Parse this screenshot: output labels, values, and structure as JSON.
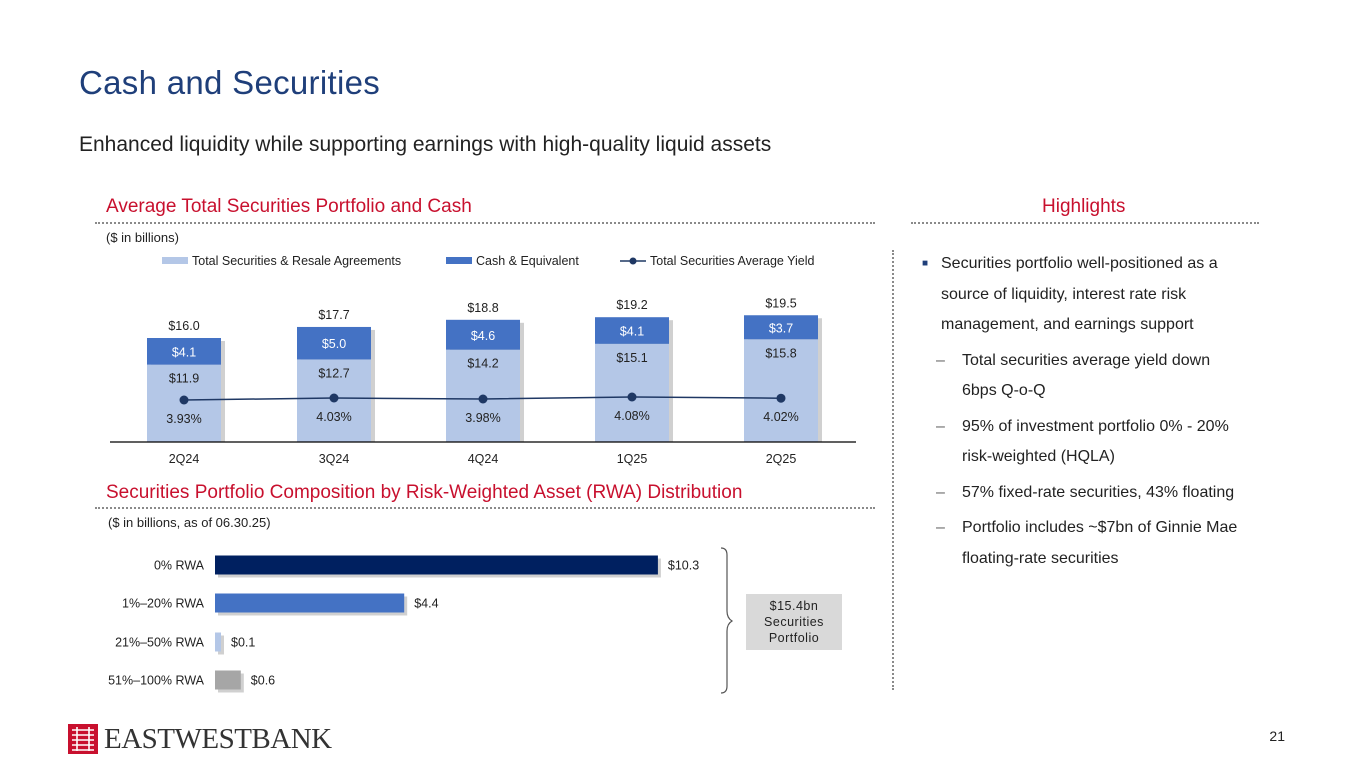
{
  "page": {
    "title": "Cash and Securities",
    "subtitle": "Enhanced liquidity while supporting earnings with high-quality liquid assets",
    "page_number": "21"
  },
  "left_top": {
    "section_title": "Average Total Securities Portfolio and Cash",
    "units_note": "($ in billions)"
  },
  "left_bottom": {
    "section_title": "Securities Portfolio Composition by Risk-Weighted Asset (RWA) Distribution",
    "units_note": "($ in billions, as of 06.30.25)",
    "callout": [
      "$15.4bn",
      "Securities",
      "Portfolio"
    ]
  },
  "highlights": {
    "title": "Highlights",
    "main_bullet": [
      "Securities portfolio well-positioned as a",
      "source of liquidity, interest rate risk",
      "management, and earnings support"
    ],
    "sub_bullets": [
      [
        "Total securities average yield down",
        "6bps Q-o-Q"
      ],
      [
        "95% of investment portfolio 0% - 20%",
        "risk-weighted (HQLA)"
      ],
      [
        "57% fixed-rate securities, 43% floating"
      ],
      [
        "Portfolio includes ~$7bn of Ginnie Mae",
        "floating-rate securities"
      ]
    ]
  },
  "brand": {
    "name": "EASTWESTBANK",
    "logo_color": "#c8102e"
  },
  "colors": {
    "light_blue": "#b4c7e7",
    "mid_blue": "#4472c4",
    "navy": "#002060",
    "line": "#1f3864",
    "gray": "#a6a6a6"
  },
  "chart_data": [
    {
      "type": "bar",
      "stacked": true,
      "categories": [
        "2Q24",
        "3Q24",
        "4Q24",
        "1Q25",
        "2Q25"
      ],
      "series": [
        {
          "name": "Total Securities & Resale Agreements",
          "values": [
            11.9,
            12.7,
            14.2,
            15.1,
            15.8
          ],
          "labels": [
            "$11.9",
            "$12.7",
            "$14.2",
            "$15.1",
            "$15.8"
          ]
        },
        {
          "name": "Cash & Equivalent",
          "values": [
            4.1,
            5.0,
            4.6,
            4.1,
            3.7
          ],
          "labels": [
            "$4.1",
            "$5.0",
            "$4.6",
            "$4.1",
            "$3.7"
          ]
        }
      ],
      "totals": [
        16.0,
        17.7,
        18.8,
        19.2,
        19.5
      ],
      "total_labels": [
        "$16.0",
        "$17.7",
        "$18.8",
        "$19.2",
        "$19.5"
      ],
      "line_series": {
        "name": "Total Securities Average Yield",
        "values": [
          3.93,
          4.03,
          3.98,
          4.08,
          4.02
        ],
        "labels": [
          "3.93%",
          "4.03%",
          "3.98%",
          "4.08%",
          "4.02%"
        ]
      },
      "legend": "top"
    },
    {
      "type": "bar",
      "orientation": "horizontal",
      "categories": [
        "0% RWA",
        "1%–20% RWA",
        "21%–50% RWA",
        "51%–100% RWA"
      ],
      "values": [
        10.3,
        4.4,
        0.1,
        0.6
      ],
      "labels": [
        "$10.3",
        "$4.4",
        "$0.1",
        "$0.6"
      ],
      "colors": [
        "#002060",
        "#4472c4",
        "#b4c7e7",
        "#a6a6a6"
      ]
    }
  ]
}
